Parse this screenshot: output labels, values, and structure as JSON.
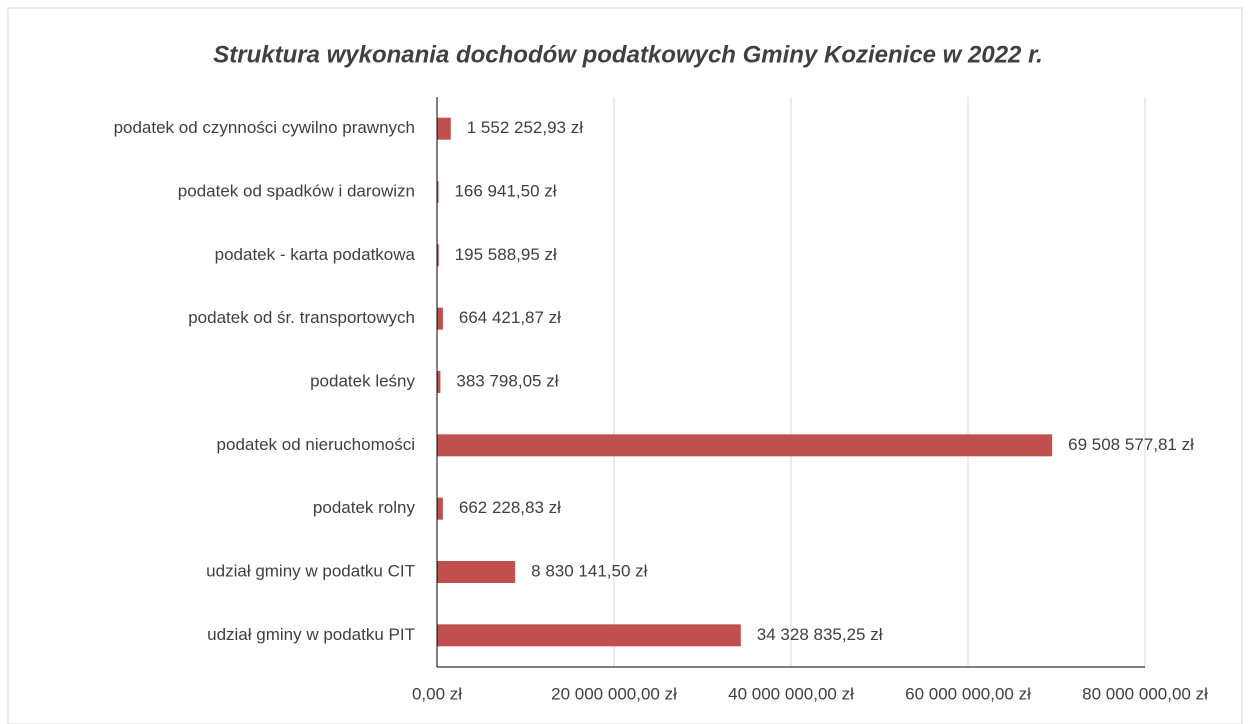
{
  "chart_data": {
    "type": "barh",
    "title": "Struktura wykonania dochodów podatkowych Gminy Kozienice w 2022 r.",
    "categories": [
      "podatek od czynności cywilno prawnych",
      "podatek od spadków i darowizn",
      "podatek - karta podatkowa",
      "podatek od śr. transportowych",
      "podatek leśny",
      "podatek od nieruchomości",
      "podatek rolny",
      "udział gminy w podatku CIT",
      "udział gminy w podatku PIT"
    ],
    "values": [
      1552252.93,
      166941.5,
      195588.95,
      664421.87,
      383798.05,
      69508577.81,
      662228.83,
      8830141.5,
      34328835.25
    ],
    "value_labels": [
      "1 552 252,93 zł",
      "166 941,50 zł",
      "195 588,95 zł",
      "664 421,87 zł",
      "383 798,05 zł",
      "69 508 577,81 zł",
      "662 228,83 zł",
      "8 830 141,50 zł",
      "34 328 835,25 zł"
    ],
    "color": "#c0504d",
    "xlim": [
      0,
      80000000
    ],
    "xticks": [
      {
        "value": 0,
        "label": "0,00 zł"
      },
      {
        "value": 20000000,
        "label": "20 000 000,00 zł"
      },
      {
        "value": 40000000,
        "label": "40 000 000,00 zł"
      },
      {
        "value": 60000000,
        "label": "60 000 000,00 zł"
      },
      {
        "value": 80000000,
        "label": "80 000 000,00 zł"
      }
    ],
    "grid": true
  }
}
